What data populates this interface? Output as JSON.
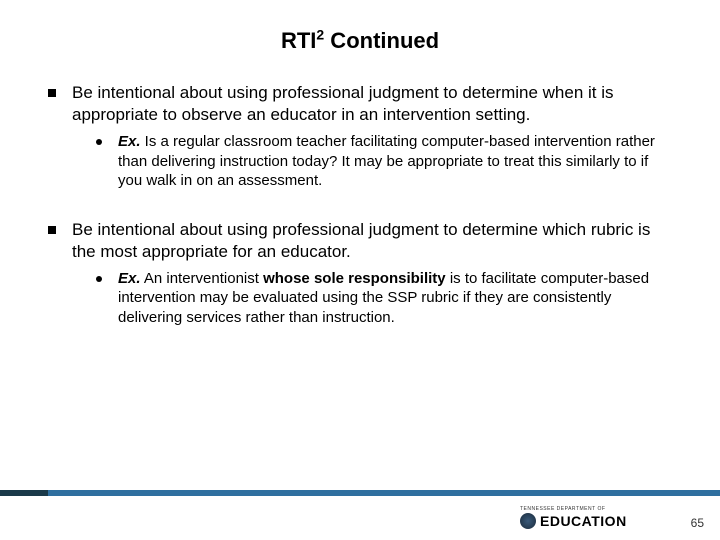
{
  "title_prefix": "RTI",
  "title_super": "2",
  "title_suffix": " Continued",
  "bullets": [
    {
      "l1": "Be intentional about using professional judgment to determine when it is appropriate to observe an educator in an intervention setting.",
      "l2_ex": "Ex.",
      "l2_rest": " Is a regular classroom teacher facilitating computer-based intervention rather than delivering instruction today? It may be appropriate to treat this similarly to if you walk in on an assessment."
    },
    {
      "l1": "Be intentional about using professional judgment to determine which rubric is the most appropriate for an educator.",
      "l2_ex": "Ex.",
      "l2_pre": " An interventionist ",
      "l2_bold": "whose sole responsibility",
      "l2_post": " is to facilitate computer-based intervention may be evaluated using the SSP rubric if they are consistently delivering services rather than instruction."
    }
  ],
  "footer": {
    "dept_line": "TENNESSEE DEPARTMENT OF",
    "edu_line": "EDUCATION",
    "page_number": "65"
  },
  "colors": {
    "bar": "#2f6f9f",
    "bar_dark": "#1a3a4a",
    "text": "#000000",
    "background": "#ffffff"
  }
}
